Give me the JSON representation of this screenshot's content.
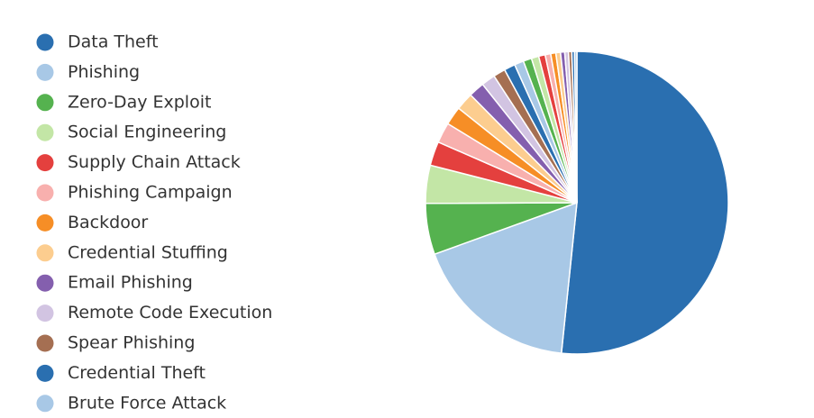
{
  "chart_data": {
    "type": "pie",
    "categories": [
      "Data Theft",
      "Phishing",
      "Zero-Day Exploit",
      "Social Engineering",
      "Supply Chain Attack",
      "Phishing Campaign",
      "Backdoor",
      "Credential Stuffing",
      "Email Phishing",
      "Remote Code Execution",
      "Spear Phishing",
      "Credential Theft",
      "Brute Force Attack",
      null,
      null,
      null,
      null,
      null,
      null,
      null,
      null,
      null,
      null,
      null
    ],
    "values": [
      52.1,
      18,
      5.5,
      4.1,
      2.6,
      2.2,
      2.0,
      1.9,
      1.7,
      1.5,
      1.3,
      1.2,
      1.0,
      0.9,
      0.8,
      0.7,
      0.6,
      0.55,
      0.5,
      0.45,
      0.4,
      0.35,
      0.3,
      0.25
    ],
    "colors": [
      "#2a6fb0",
      "#a8c8e6",
      "#55b24f",
      "#c3e6a6",
      "#e4403e",
      "#f8b0ae",
      "#f68e26",
      "#fccd8f",
      "#845fae",
      "#d2c4e2",
      "#a56f52",
      "#2a6fb0",
      "#a8c8e6",
      "#55b24f",
      "#c3e6a6",
      "#e4403e",
      "#f8b0ae",
      "#f68e26",
      "#fccd8f",
      "#845fae",
      "#d2c4e2",
      "#a56f52",
      "#2a6fb0",
      "#a8c8e6"
    ],
    "legend": "left"
  }
}
